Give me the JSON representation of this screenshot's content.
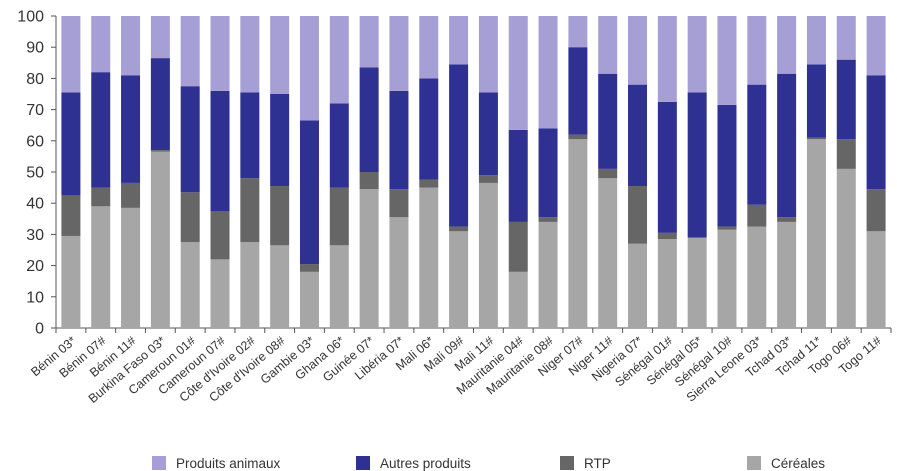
{
  "chart_data": {
    "type": "bar",
    "stacked": true,
    "ylim": [
      0,
      100
    ],
    "yticks": [
      0,
      10,
      20,
      30,
      40,
      50,
      60,
      70,
      80,
      90,
      100
    ],
    "grid": false,
    "legend_position": "bottom",
    "categories": [
      "Bénin 03*",
      "Bénin 07#",
      "Bénin 11#",
      "Burkina Faso 03*",
      "Cameroun 01#",
      "Cameroun 07#",
      "Côte d'Ivoire 02#",
      "Côte d'Ivoire 08#",
      "Gambie 03*",
      "Ghana 06*",
      "Guinée 07*",
      "Libéria 07*",
      "Mali 06*",
      "Mali 09#",
      "Mali 11#",
      "Mauritanie 04#",
      "Mauritanie 08#",
      "Niger 07#",
      "Niger 11#",
      "Nigeria 07*",
      "Sénégal 01#",
      "Sénégal 05*",
      "Sénégal 10#",
      "Sierra Leone 03*",
      "Tchad 03*",
      "Tchad 11*",
      "Togo 06#",
      "Togo 11#"
    ],
    "series": [
      {
        "name": "Céréales",
        "color": "#a6a6a6",
        "values": [
          29.5,
          39,
          38.5,
          56.5,
          27.5,
          22,
          27.5,
          26.5,
          18,
          26.5,
          44.5,
          35.5,
          45,
          31,
          46.5,
          18,
          34,
          60.5,
          48,
          27,
          28.5,
          29,
          31.5,
          32.5,
          34,
          60.5,
          51,
          31
        ]
      },
      {
        "name": "RTP",
        "color": "#666666",
        "values": [
          13,
          6,
          8,
          0.5,
          16,
          15.5,
          20.5,
          19,
          2.5,
          18.5,
          5.5,
          9,
          2.5,
          1.5,
          2.5,
          16,
          1.5,
          1.5,
          3,
          18.5,
          2,
          0,
          1,
          7,
          1.5,
          0.5,
          9.5,
          13.5
        ]
      },
      {
        "name": "Autres produits",
        "color": "#2e3192",
        "values": [
          33,
          37,
          34.5,
          29.5,
          34,
          38.5,
          27.5,
          29.5,
          46,
          27,
          33.5,
          31.5,
          32.5,
          52,
          26.5,
          29.5,
          28.5,
          28,
          30.5,
          32.5,
          42,
          46.5,
          39,
          38.5,
          46,
          23.5,
          25.5,
          36.5
        ]
      },
      {
        "name": "Produits animaux",
        "color": "#a59fd6",
        "values": [
          24.5,
          18,
          19,
          13.5,
          22.5,
          24,
          24.5,
          25,
          33.5,
          28,
          16.5,
          24,
          20,
          15.5,
          24.5,
          36.5,
          36,
          10,
          18.5,
          22,
          27.5,
          24.5,
          28.5,
          22,
          18.5,
          15.5,
          14,
          19
        ]
      }
    ],
    "legend_order": [
      "Produits animaux",
      "Autres produits",
      "RTP",
      "Céréales"
    ]
  }
}
